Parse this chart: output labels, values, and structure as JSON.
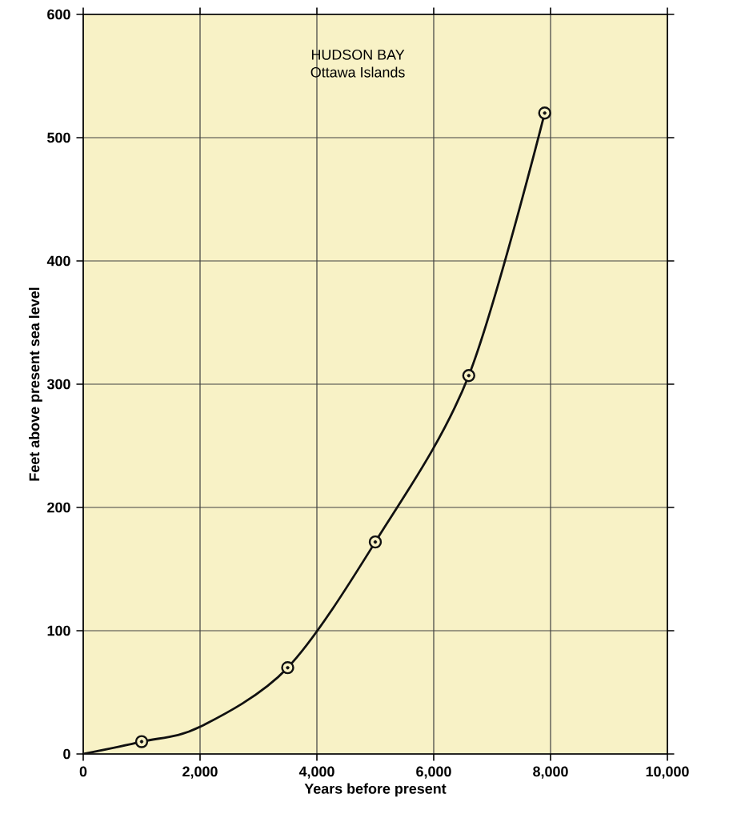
{
  "chart_data": {
    "type": "line",
    "title": "HUDSON BAY",
    "subtitle": "Ottawa Islands",
    "xlabel": "Years before present",
    "ylabel": "Feet above present sea level",
    "xlim": [
      0,
      10000
    ],
    "ylim": [
      0,
      600
    ],
    "xticks": [
      0,
      {
        "value": 2000,
        "label": "2,000"
      },
      {
        "value": 4000,
        "label": "4,000"
      },
      {
        "value": 6000,
        "label": "6,000"
      },
      {
        "value": 8000,
        "label": "8,000"
      },
      {
        "value": 10000,
        "label": "10,000"
      }
    ],
    "yticks": [
      0,
      100,
      200,
      300,
      400,
      500,
      600
    ],
    "grid": true,
    "series": [
      {
        "color": "#111111",
        "x": [
          0,
          1000,
          2000,
          3500,
          5000,
          6600,
          7900
        ],
        "values": [
          0,
          10,
          22,
          70,
          172,
          307,
          520
        ]
      },
      {
        "type": "scatter",
        "color": "#111111",
        "marker": "circle",
        "x": [
          1000,
          3500,
          5000,
          6600,
          7900
        ],
        "values": [
          10,
          70,
          172,
          307,
          520
        ]
      }
    ]
  }
}
